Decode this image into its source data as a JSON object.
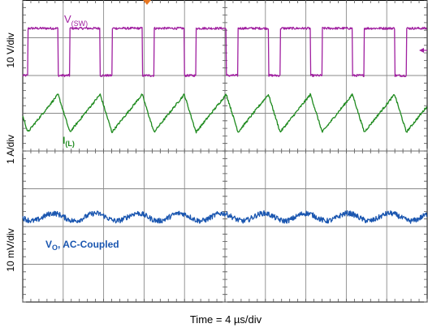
{
  "chart_data": {
    "type": "line",
    "title": "",
    "xlabel": "Time = 4 µs/div",
    "ylabels": [
      "10 V/div",
      "1 A/div",
      "10 mV/div"
    ],
    "x_divisions": 10,
    "y_divisions": 8,
    "xlim": [
      0,
      40
    ],
    "x_unit": "µs",
    "grid": true,
    "series": [
      {
        "name": "V(SW)",
        "label_main": "V",
        "label_sub": "(SW)",
        "color": "#a020a0",
        "shape": "square",
        "period_us": 4.16,
        "duty": 0.72,
        "high_div": 7.25,
        "low_div": 6.0,
        "phase_us": 0.5,
        "noise_div": 0.03
      },
      {
        "name": "I(L)",
        "label_main": "I",
        "label_sub": "(L)",
        "color": "#1e8a1e",
        "shape": "triangle",
        "period_us": 4.16,
        "duty": 0.72,
        "peak_div": 5.5,
        "valley_div": 4.5,
        "phase_us": 0.5,
        "noise_div": 0.03
      },
      {
        "name": "VO, AC-Coupled",
        "label_main": "V",
        "label_sub": "O",
        "label_rest": ", AC-Coupled",
        "color": "#1a56b0",
        "shape": "sine",
        "period_us": 4.16,
        "center_div": 2.25,
        "amplitude_div": 0.1,
        "phase_us": 2.0,
        "noise_div": 0.07
      }
    ],
    "markers": {
      "trigger_color": "#e87722",
      "level_color": "#a020a0"
    }
  }
}
